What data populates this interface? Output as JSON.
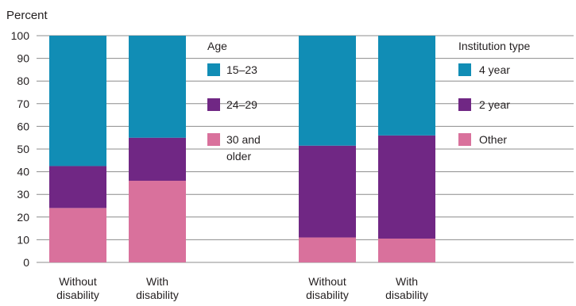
{
  "chart_data": {
    "type": "bar",
    "stacked": true,
    "ylabel": "Percent",
    "ylim": [
      0,
      100
    ],
    "yticks": [
      0,
      10,
      20,
      30,
      40,
      50,
      60,
      70,
      80,
      90,
      100
    ],
    "grid": true,
    "panels": [
      {
        "legend_title": "Age",
        "categories": [
          [
            "Without",
            "disability"
          ],
          [
            "With",
            "disability"
          ]
        ],
        "series": [
          {
            "name": "30 and older",
            "label_lines": [
              "30 and",
              "older"
            ],
            "color": "#d9719c",
            "values": [
              24,
              36
            ]
          },
          {
            "name": "24–29",
            "label_lines": [
              "24–29"
            ],
            "color": "#702784",
            "values": [
              18.5,
              19
            ]
          },
          {
            "name": "15–23",
            "label_lines": [
              "15–23"
            ],
            "color": "#118db5",
            "values": [
              57.5,
              45
            ]
          }
        ]
      },
      {
        "legend_title": "Institution type",
        "categories": [
          [
            "Without",
            "disability"
          ],
          [
            "With",
            "disability"
          ]
        ],
        "series": [
          {
            "name": "Other",
            "label_lines": [
              "Other"
            ],
            "color": "#d9719c",
            "values": [
              11,
              10.5
            ]
          },
          {
            "name": "2 year",
            "label_lines": [
              "2 year"
            ],
            "color": "#702784",
            "values": [
              40.5,
              45.5
            ]
          },
          {
            "name": "4 year",
            "label_lines": [
              "4 year"
            ],
            "color": "#118db5",
            "values": [
              48.5,
              44
            ]
          }
        ]
      }
    ]
  }
}
